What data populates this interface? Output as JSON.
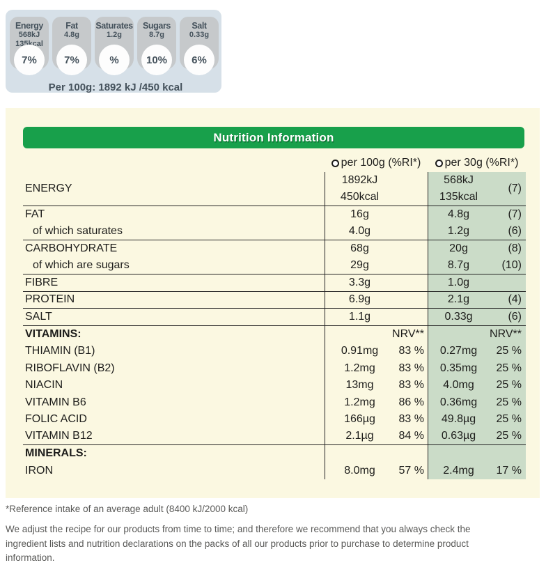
{
  "gda": {
    "badges": [
      {
        "label": "Energy",
        "values": [
          "568kJ",
          "135kcal"
        ],
        "percent": "7%"
      },
      {
        "label": "Fat",
        "values": [
          "4.8g"
        ],
        "percent": "7%"
      },
      {
        "label": "Saturates",
        "values": [
          "1.2g"
        ],
        "percent": "%"
      },
      {
        "label": "Sugars",
        "values": [
          "8.7g"
        ],
        "percent": "10%"
      },
      {
        "label": "Salt",
        "values": [
          "0.33g"
        ],
        "percent": "6%"
      }
    ],
    "per_100g_line": "Per 100g: 1892 kJ /450 kcal"
  },
  "table": {
    "title": "Nutrition Information",
    "columns": {
      "per100": "per 100g (%RI*)",
      "per30": "per 30g (%RI*)"
    },
    "rows": [
      {
        "label": "ENERGY",
        "tall": true,
        "divider": true,
        "per100": {
          "amount": "1892kJ",
          "amount2": "450kcal",
          "pct": ""
        },
        "per30": {
          "amount": "568kJ",
          "amount2": "135kcal",
          "pct": "(7)"
        }
      },
      {
        "label": "FAT",
        "per100": {
          "amount": "16g",
          "pct": ""
        },
        "per30": {
          "amount": "4.8g",
          "pct": "(7)"
        }
      },
      {
        "label": "of which saturates",
        "indent": true,
        "divider": true,
        "per100": {
          "amount": "4.0g",
          "pct": ""
        },
        "per30": {
          "amount": "1.2g",
          "pct": "(6)"
        }
      },
      {
        "label": "CARBOHYDRATE",
        "per100": {
          "amount": "68g",
          "pct": ""
        },
        "per30": {
          "amount": "20g",
          "pct": "(8)"
        }
      },
      {
        "label": "of which are sugars",
        "indent": true,
        "divider": true,
        "per100": {
          "amount": "29g",
          "pct": ""
        },
        "per30": {
          "amount": "8.7g",
          "pct": "(10)"
        }
      },
      {
        "label": "FIBRE",
        "divider": true,
        "per100": {
          "amount": "3.3g",
          "pct": ""
        },
        "per30": {
          "amount": "1.0g",
          "pct": ""
        }
      },
      {
        "label": "PROTEIN",
        "divider": true,
        "per100": {
          "amount": "6.9g",
          "pct": ""
        },
        "per30": {
          "amount": "2.1g",
          "pct": "(4)"
        }
      },
      {
        "label": "SALT",
        "divider": true,
        "per100": {
          "amount": "1.1g",
          "pct": ""
        },
        "per30": {
          "amount": "0.33g",
          "pct": "(6)"
        }
      },
      {
        "label": "VITAMINS:",
        "section": true,
        "per100": {
          "amount": "",
          "pct": "NRV**"
        },
        "per30": {
          "amount": "",
          "pct": "NRV**"
        }
      },
      {
        "label": "THIAMIN (B1)",
        "per100": {
          "amount": "0.91mg",
          "pct": "83 %"
        },
        "per30": {
          "amount": "0.27mg",
          "pct": "25 %"
        }
      },
      {
        "label": "RIBOFLAVIN (B2)",
        "per100": {
          "amount": "1.2mg",
          "pct": "83 %"
        },
        "per30": {
          "amount": "0.35mg",
          "pct": "25 %"
        }
      },
      {
        "label": "NIACIN",
        "per100": {
          "amount": "13mg",
          "pct": "83 %"
        },
        "per30": {
          "amount": "4.0mg",
          "pct": "25 %"
        }
      },
      {
        "label": "VITAMIN B6",
        "per100": {
          "amount": "1.2mg",
          "pct": "86 %"
        },
        "per30": {
          "amount": "0.36mg",
          "pct": "25 %"
        }
      },
      {
        "label": "FOLIC ACID",
        "per100": {
          "amount": "166µg",
          "pct": "83 %"
        },
        "per30": {
          "amount": "49.8µg",
          "pct": "25 %"
        }
      },
      {
        "label": "VITAMIN B12",
        "divider": true,
        "per100": {
          "amount": "2.1µg",
          "pct": "84 %"
        },
        "per30": {
          "amount": "0.63µg",
          "pct": "25 %"
        }
      },
      {
        "label": "MINERALS:",
        "section": true,
        "per100": {
          "amount": "",
          "pct": ""
        },
        "per30": {
          "amount": "",
          "pct": ""
        }
      },
      {
        "label": "IRON",
        "per100": {
          "amount": "8.0mg",
          "pct": "57 %"
        },
        "per30": {
          "amount": "2.4mg",
          "pct": "17 %"
        }
      }
    ]
  },
  "footnotes": {
    "reference": "*Reference intake of an average adult (8400 kJ/2000 kcal)",
    "disclaimer": "We adjust the recipe for our products from time to time; and therefore we recommend that you always check the ingredient lists and nutrition declarations on the packs of all our products prior to purchase to determine product information."
  },
  "colors": {
    "header_green": "#18A04B",
    "per30_column_green": "#CBDCC8",
    "panel_cream": "#FBF8E1",
    "gda_strip_blue": "#D6E0E8",
    "badge_gray": "#C6C9CB",
    "badge_text_slate": "#45525C",
    "table_text": "#1D1D1B",
    "footnote_gray": "#595957"
  }
}
